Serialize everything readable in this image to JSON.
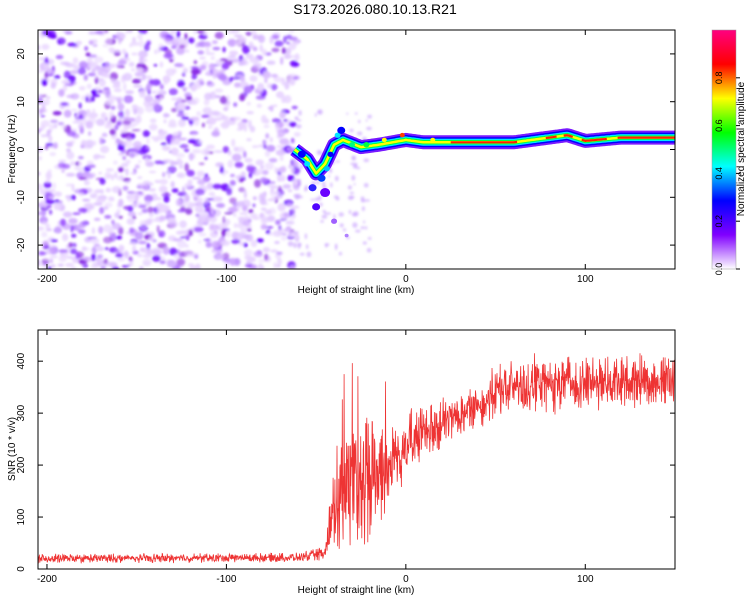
{
  "page": {
    "title": "S173.2026.080.10.13.R21"
  },
  "chart_data": [
    {
      "type": "heatmap",
      "xlabel": "Height of straight line (km)",
      "ylabel": "Frequency (Hz)",
      "xlim": [
        -205,
        150
      ],
      "ylim": [
        -25,
        25
      ],
      "xticks": [
        -200,
        -100,
        0,
        100
      ],
      "yticks": [
        -20,
        -10,
        0,
        10,
        20
      ],
      "colorbar": {
        "label": "Normalized spectral amplitude",
        "range": [
          0,
          1
        ],
        "ticks": [
          "0.0",
          "0.2",
          "0.4",
          "0.6",
          "0.8"
        ],
        "colors": [
          "#ffffff",
          "#8000ff",
          "#0000ff",
          "#00ffff",
          "#00ff00",
          "#ffff00",
          "#ff0000",
          "#ff0080"
        ]
      },
      "noise_region_x": [
        -205,
        -60
      ],
      "ridge": [
        {
          "x": -62,
          "y": 0
        },
        {
          "x": -55,
          "y": -2
        },
        {
          "x": -50,
          "y": -5
        },
        {
          "x": -45,
          "y": -3
        },
        {
          "x": -40,
          "y": 1
        },
        {
          "x": -35,
          "y": 2
        },
        {
          "x": -25,
          "y": 0.5
        },
        {
          "x": -15,
          "y": 1
        },
        {
          "x": 0,
          "y": 2
        },
        {
          "x": 10,
          "y": 1.5
        },
        {
          "x": 30,
          "y": 1.5
        },
        {
          "x": 60,
          "y": 1.5
        },
        {
          "x": 80,
          "y": 2.5
        },
        {
          "x": 90,
          "y": 3
        },
        {
          "x": 100,
          "y": 1.8
        },
        {
          "x": 120,
          "y": 2.5
        },
        {
          "x": 150,
          "y": 2.5
        }
      ]
    },
    {
      "type": "line",
      "xlabel": "Height of straight line (km)",
      "ylabel": "SNR (10 * v/v)",
      "xlim": [
        -205,
        150
      ],
      "ylim": [
        0,
        460
      ],
      "xticks": [
        -200,
        -100,
        0,
        100
      ],
      "yticks": [
        0,
        100,
        200,
        300,
        400
      ],
      "series": [
        {
          "color": "#ee3333",
          "trend": [
            {
              "x": -205,
              "mean": 20,
              "spread": 10
            },
            {
              "x": -60,
              "mean": 22,
              "spread": 10
            },
            {
              "x": -45,
              "mean": 30,
              "spread": 15
            },
            {
              "x": -40,
              "mean": 130,
              "spread": 120
            },
            {
              "x": -30,
              "mean": 170,
              "spread": 130
            },
            {
              "x": -20,
              "mean": 180,
              "spread": 150
            },
            {
              "x": -10,
              "mean": 200,
              "spread": 110
            },
            {
              "x": 0,
              "mean": 240,
              "spread": 80
            },
            {
              "x": 20,
              "mean": 280,
              "spread": 55
            },
            {
              "x": 40,
              "mean": 315,
              "spread": 45
            },
            {
              "x": 55,
              "mean": 350,
              "spread": 65
            },
            {
              "x": 100,
              "mean": 360,
              "spread": 60
            },
            {
              "x": 150,
              "mean": 365,
              "spread": 60
            }
          ]
        }
      ]
    }
  ]
}
